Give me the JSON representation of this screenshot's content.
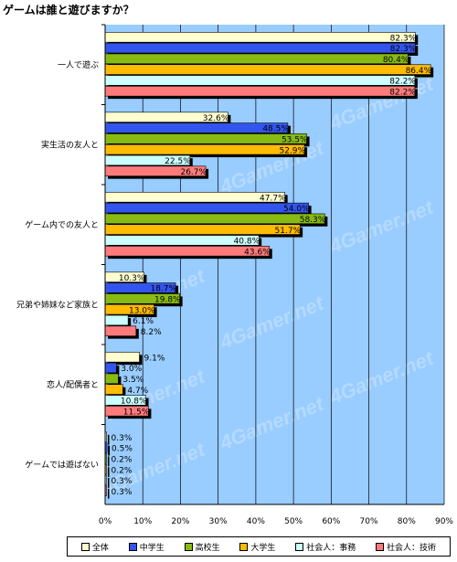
{
  "title": "ゲームは誰と遊びますか？",
  "watermark": "4Gamer.net",
  "chart_data": {
    "type": "bar",
    "orientation": "horizontal",
    "title": "ゲームは誰と遊びますか？",
    "categories": [
      "一人で遊ぶ",
      "実生活の友人と",
      "ゲーム内での友人と",
      "兄弟や姉妹など家族と",
      "恋人/配偶者と",
      "ゲームでは遊ばない"
    ],
    "series": [
      {
        "name": "全体",
        "color": "#fffed0",
        "values": [
          82.3,
          32.6,
          47.7,
          10.3,
          9.1,
          0.3
        ]
      },
      {
        "name": "中学生",
        "color": "#3355ee",
        "values": [
          82.3,
          48.5,
          54.0,
          18.7,
          3.0,
          0.5
        ]
      },
      {
        "name": "高校生",
        "color": "#88bb11",
        "values": [
          80.4,
          53.5,
          58.3,
          19.8,
          3.5,
          0.2
        ]
      },
      {
        "name": "大学生",
        "color": "#ffbb00",
        "values": [
          86.4,
          52.9,
          51.7,
          13.0,
          4.7,
          0.2
        ]
      },
      {
        "name": "社会人：事務",
        "color": "#ccffff",
        "values": [
          82.2,
          22.5,
          40.8,
          6.1,
          10.8,
          0.3
        ]
      },
      {
        "name": "社会人：技術",
        "color": "#ff7b7b",
        "values": [
          82.2,
          26.7,
          43.6,
          8.2,
          11.5,
          0.3
        ]
      }
    ],
    "xlim": [
      0,
      90
    ],
    "xticks": [
      "0%",
      "10%",
      "20%",
      "30%",
      "40%",
      "50%",
      "60%",
      "70%",
      "80%",
      "90%"
    ],
    "value_suffix": "%",
    "grid": true,
    "legend": "bottom",
    "plot_background": "#99ccff"
  }
}
